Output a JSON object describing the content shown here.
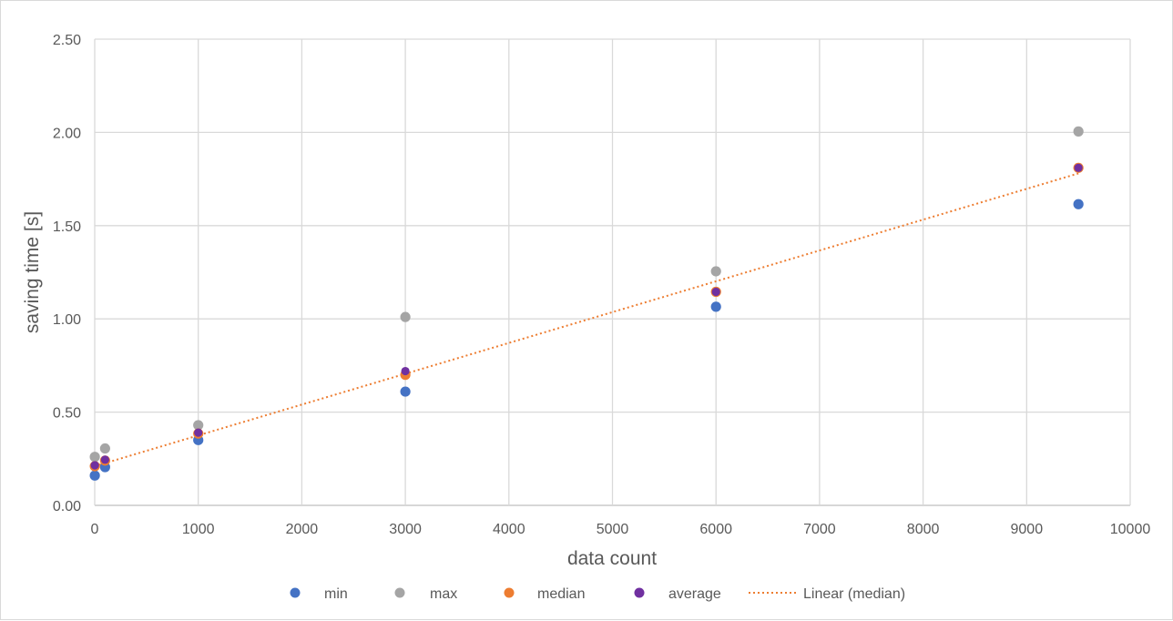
{
  "chart_data": {
    "type": "scatter",
    "title": "",
    "xlabel": "data count",
    "ylabel": "saving time [s]",
    "xlim": [
      0,
      10000
    ],
    "ylim": [
      0,
      2.5
    ],
    "x_ticks": [
      "0",
      "1000",
      "2000",
      "3000",
      "4000",
      "5000",
      "6000",
      "7000",
      "8000",
      "9000",
      "10000"
    ],
    "y_ticks": [
      "0.00",
      "0.50",
      "1.00",
      "1.50",
      "2.00",
      "2.50"
    ],
    "grid": true,
    "legend_position": "bottom",
    "series": [
      {
        "name": "min",
        "color": "#4472c4",
        "x": [
          1,
          100,
          1000,
          3000,
          6000,
          9500
        ],
        "y": [
          0.16,
          0.205,
          0.35,
          0.61,
          1.065,
          1.615
        ]
      },
      {
        "name": "max",
        "color": "#a5a5a5",
        "x": [
          1,
          100,
          1000,
          3000,
          6000,
          9500
        ],
        "y": [
          0.26,
          0.305,
          0.43,
          1.01,
          1.255,
          2.005
        ]
      },
      {
        "name": "median",
        "color": "#ed7d31",
        "x": [
          1,
          100,
          1000,
          3000,
          6000,
          9500
        ],
        "y": [
          0.21,
          0.24,
          0.385,
          0.7,
          1.145,
          1.81
        ]
      },
      {
        "name": "average",
        "color": "#7030a0",
        "x": [
          1,
          100,
          1000,
          3000,
          6000,
          9500
        ],
        "y": [
          0.215,
          0.245,
          0.39,
          0.72,
          1.145,
          1.81
        ]
      }
    ],
    "trendline": {
      "name": "Linear (median)",
      "color": "#ed7d31",
      "style": "dotted",
      "x": [
        1,
        9500
      ],
      "y": [
        0.21,
        1.78
      ]
    },
    "legend": [
      "min",
      "max",
      "median",
      "average",
      "Linear (median)"
    ]
  }
}
